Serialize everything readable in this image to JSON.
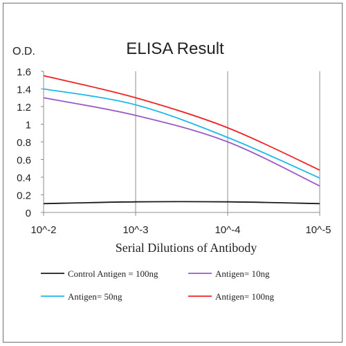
{
  "chart_data": {
    "type": "line",
    "title": "ELISA Result",
    "ylabel": "O.D.",
    "xlabel": "Serial Dilutions  of Antibody",
    "x_tick_labels": [
      "10^-2",
      "10^-3",
      "10^-4",
      "10^-5"
    ],
    "y_tick_labels": [
      "0",
      "0.2",
      "0.4",
      "0.6",
      "0.8",
      "1",
      "1.2",
      "1.4",
      "1.6"
    ],
    "ylim": [
      0,
      1.6
    ],
    "x": [
      -2,
      -3,
      -4,
      -5
    ],
    "grid": "vertical lines only",
    "legend_position": "bottom",
    "series": [
      {
        "name": "Control Antigen = 100ng",
        "color": "#1a1a1a",
        "values": [
          0.1,
          0.12,
          0.12,
          0.1
        ]
      },
      {
        "name": "Antigen= 10ng",
        "color": "#9b59c6",
        "values": [
          1.3,
          1.1,
          0.8,
          0.3
        ]
      },
      {
        "name": "Antigen= 50ng",
        "color": "#1fb8ea",
        "values": [
          1.4,
          1.22,
          0.85,
          0.39
        ]
      },
      {
        "name": "Antigen= 100ng",
        "color": "#ee2222",
        "values": [
          1.55,
          1.3,
          0.96,
          0.48
        ]
      }
    ]
  }
}
